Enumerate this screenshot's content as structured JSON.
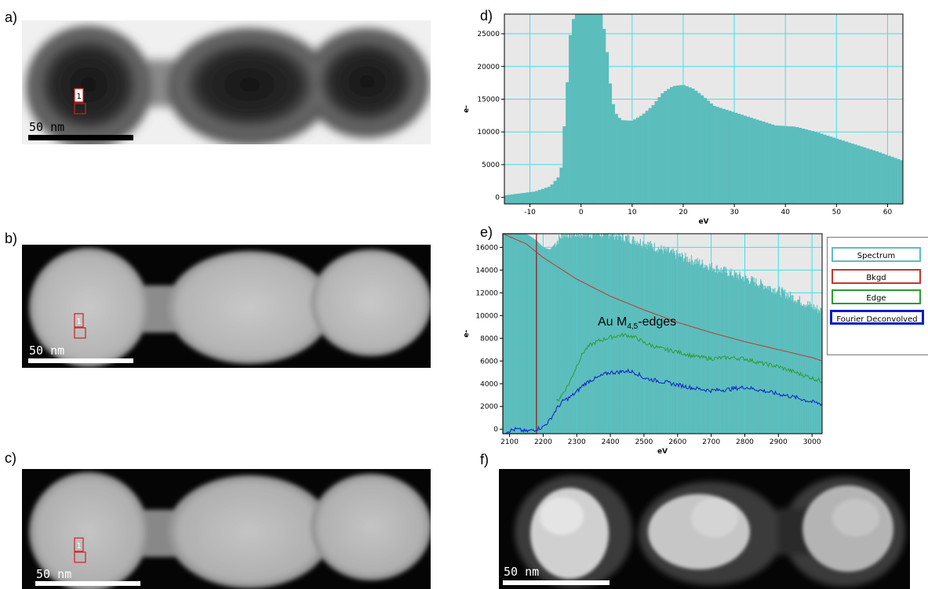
{
  "panels": {
    "a": {
      "label": "a)"
    },
    "b": {
      "label": "b)"
    },
    "c": {
      "label": "c)"
    },
    "d": {
      "label": "d)"
    },
    "e": {
      "label": "e)"
    },
    "f": {
      "label": "f)"
    }
  },
  "scalebar": {
    "text": "50 nm"
  },
  "region_marker": {
    "text": "1"
  },
  "annotation": {
    "prefix": "Au M",
    "subscript": "4,5",
    "suffix": "-edges"
  },
  "legend": {
    "items": [
      {
        "label": "Spectrum",
        "color": "#5fbdbd"
      },
      {
        "label": "Bkgd",
        "color": "#c0392b"
      },
      {
        "label": "Edge",
        "color": "#2e9a2e"
      },
      {
        "label": "Fourier Deconvolved",
        "color": "#0b1cc8"
      }
    ]
  },
  "colors": {
    "fill": "#5cbdbd",
    "grid": "#3fe0e8",
    "plot_bg": "#e8e8e8",
    "bkgd": "#c0392b",
    "edge": "#2e9a2e",
    "deconv": "#0b1cc8"
  },
  "chart_data": [
    {
      "id": "d",
      "type": "area",
      "xlabel": "eV",
      "ylabel": "e-",
      "xlim": [
        -15,
        63
      ],
      "ylim": [
        -1000,
        28000
      ],
      "xticks": [
        -10,
        0,
        10,
        20,
        30,
        40,
        50,
        60
      ],
      "yticks": [
        0,
        5000,
        10000,
        15000,
        20000,
        25000
      ],
      "series": [
        {
          "values_x": [
            -15,
            -12,
            -9,
            -6,
            -4,
            -3,
            -2,
            -1,
            0,
            2,
            4,
            5,
            6,
            7,
            8,
            10,
            12,
            14,
            16,
            18,
            20,
            22,
            24,
            26,
            28,
            30,
            34,
            38,
            42,
            46,
            50,
            54,
            58,
            63
          ],
          "values_y": [
            300,
            600,
            900,
            1700,
            3500,
            14000,
            26000,
            28500,
            28500,
            28500,
            28500,
            23000,
            15000,
            12500,
            11800,
            11700,
            12600,
            14000,
            16000,
            17000,
            17200,
            16600,
            15400,
            14000,
            13500,
            13000,
            12000,
            11000,
            10800,
            10000,
            9000,
            8000,
            7000,
            5600
          ]
        }
      ]
    },
    {
      "id": "e",
      "type": "line",
      "xlabel": "eV",
      "ylabel": "e-",
      "xlim": [
        2080,
        3030
      ],
      "ylim": [
        -400,
        17200
      ],
      "xticks": [
        2100,
        2200,
        2300,
        2400,
        2500,
        2600,
        2700,
        2800,
        2900,
        3000
      ],
      "yticks": [
        0,
        2000,
        4000,
        6000,
        8000,
        10000,
        12000,
        14000,
        16000
      ],
      "series": [
        {
          "name": "Spectrum",
          "x": [
            2080,
            2150,
            2180,
            2200,
            2220,
            2240,
            2260,
            2300,
            2400,
            2500,
            2600,
            2700,
            2800,
            2900,
            3000,
            3030
          ],
          "y": [
            17200,
            17200,
            16600,
            16000,
            15800,
            16500,
            17200,
            17200,
            17200,
            16400,
            15300,
            14300,
            13300,
            12200,
            10800,
            10400
          ]
        },
        {
          "name": "Bkgd",
          "x": [
            2080,
            2150,
            2200,
            2300,
            2400,
            2500,
            2600,
            2700,
            2800,
            2900,
            3000,
            3030
          ],
          "y": [
            17200,
            16300,
            15100,
            13200,
            11700,
            10500,
            9400,
            8500,
            7700,
            7000,
            6300,
            6000
          ]
        },
        {
          "name": "Edge",
          "x": [
            2240,
            2260,
            2280,
            2300,
            2320,
            2340,
            2360,
            2380,
            2400,
            2420,
            2440,
            2460,
            2480,
            2500,
            2550,
            2600,
            2650,
            2700,
            2750,
            2800,
            2850,
            2900,
            2950,
            3000,
            3030
          ],
          "y": [
            2400,
            3200,
            4200,
            5600,
            6800,
            7400,
            7700,
            7900,
            8100,
            8200,
            8300,
            8200,
            8000,
            7600,
            7100,
            6800,
            6400,
            6200,
            6300,
            6200,
            5800,
            5500,
            5000,
            4500,
            4200
          ]
        },
        {
          "name": "Fourier Deconvolved",
          "x": [
            2090,
            2120,
            2150,
            2180,
            2200,
            2220,
            2240,
            2260,
            2280,
            2300,
            2320,
            2340,
            2360,
            2380,
            2400,
            2420,
            2440,
            2460,
            2480,
            2500,
            2550,
            2600,
            2650,
            2700,
            2750,
            2800,
            2850,
            2900,
            2950,
            3000,
            3030
          ],
          "y": [
            -200,
            0,
            -200,
            0,
            200,
            800,
            1800,
            2500,
            2800,
            3300,
            3900,
            4300,
            4500,
            4800,
            5000,
            5000,
            5100,
            5100,
            4900,
            4500,
            4200,
            3900,
            3600,
            3400,
            3500,
            3700,
            3400,
            3100,
            2800,
            2400,
            2200
          ]
        }
      ]
    }
  ]
}
